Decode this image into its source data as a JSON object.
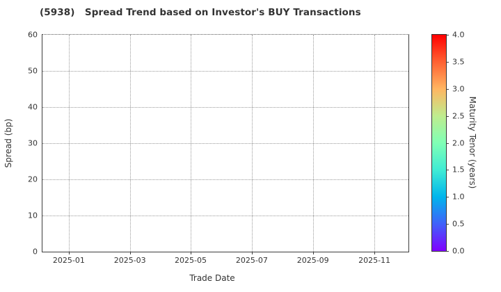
{
  "chart_data": {
    "type": "scatter",
    "title": "(5938)   Spread Trend based on Investor's BUY Transactions",
    "xlabel": "Trade Date",
    "ylabel": "Spread (bp)",
    "x_tick_labels": [
      "2025-01",
      "2025-03",
      "2025-05",
      "2025-07",
      "2025-09",
      "2025-11"
    ],
    "x_tick_positions": [
      0.072,
      0.239,
      0.405,
      0.572,
      0.739,
      0.907
    ],
    "y_ticks": [
      0,
      10,
      20,
      30,
      40,
      50,
      60
    ],
    "ylim": [
      0,
      60
    ],
    "grid": true,
    "grid_style": "dotted",
    "points": [],
    "colorbar": {
      "label": "Maturity Tenor (years)",
      "ticks": [
        0.0,
        0.5,
        1.0,
        1.5,
        2.0,
        2.5,
        3.0,
        3.5,
        4.0
      ],
      "tick_labels": [
        "0.0",
        "0.5",
        "1.0",
        "1.5",
        "2.0",
        "2.5",
        "3.0",
        "3.5",
        "4.0"
      ],
      "range": [
        0.0,
        4.0
      ],
      "colormap": "rainbow",
      "gradient": [
        "#8000ff",
        "#4061fa",
        "#00b5ec",
        "#40ecd4",
        "#80ffb5",
        "#bfec8e",
        "#ffb561",
        "#ff6132",
        "#ff0000"
      ]
    },
    "colors": {
      "text": "#333333",
      "spine": "#3c3c3c",
      "grid": "#999999",
      "background": "#ffffff"
    }
  }
}
